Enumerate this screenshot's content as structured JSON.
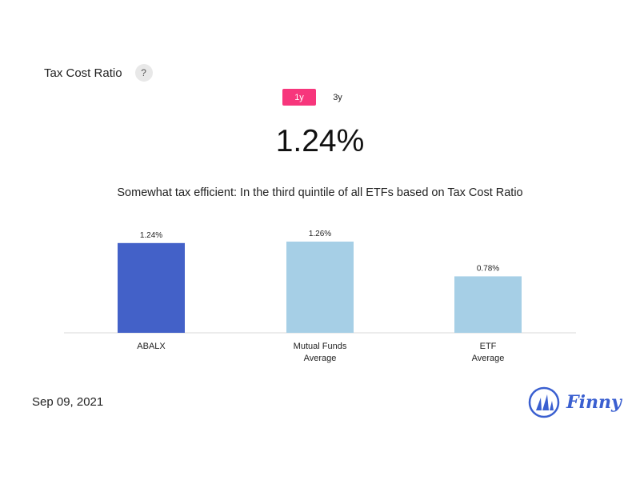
{
  "header": {
    "title": "Tax Cost Ratio",
    "help_label": "?"
  },
  "period_tabs": [
    {
      "label": "1y",
      "active": true
    },
    {
      "label": "3y",
      "active": false
    }
  ],
  "main_value": "1.24%",
  "description": "Somewhat tax efficient: In the third quintile of all ETFs based on Tax Cost Ratio",
  "chart_data": {
    "type": "bar",
    "categories": [
      [
        "ABALX"
      ],
      [
        "Mutual Funds",
        "Average"
      ],
      [
        "ETF",
        "Average"
      ]
    ],
    "values": [
      1.24,
      1.26,
      0.78
    ],
    "value_labels": [
      "1.24%",
      "1.26%",
      "0.78%"
    ],
    "colors": [
      "#4361c8",
      "#a6cfe6",
      "#a6cfe6"
    ],
    "ylim": [
      0,
      1.26
    ],
    "grid": false,
    "title": "",
    "xlabel": "",
    "ylabel": ""
  },
  "footer": {
    "date": "Sep 09, 2021",
    "brand": "Finny"
  },
  "colors": {
    "accent": "#f7367c",
    "brand": "#3a5fd0"
  }
}
